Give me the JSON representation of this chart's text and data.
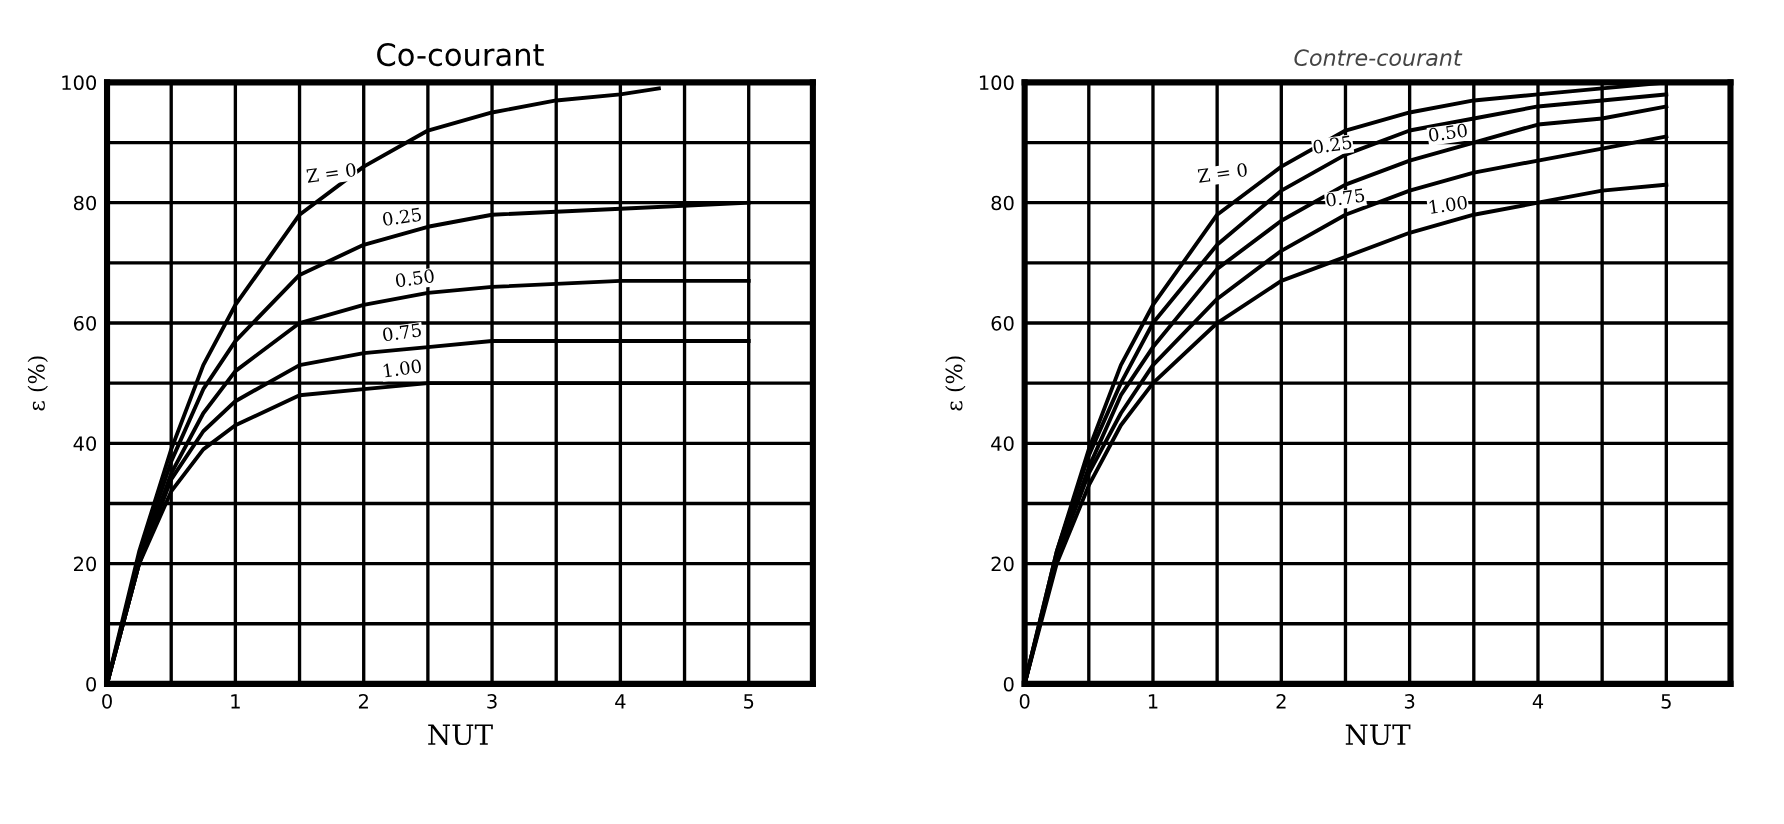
{
  "chart_data": [
    {
      "type": "line",
      "title": "Co-courant",
      "xlabel": "NUT",
      "ylabel": "ε (%)",
      "xlim": [
        0,
        5.5
      ],
      "ylim": [
        0,
        100
      ],
      "xticks": [
        0,
        {
          "value": 0.5,
          "label": null
        },
        1,
        {
          "value": 1.5,
          "label": null
        },
        2,
        {
          "value": 2.5,
          "label": null
        },
        3,
        {
          "value": 3.5,
          "label": null
        },
        4,
        {
          "value": 4.5,
          "label": null
        },
        5
      ],
      "yticks": [
        0,
        {
          "value": 10,
          "label": null
        },
        20,
        {
          "value": 30,
          "label": null
        },
        40,
        {
          "value": 50,
          "label": null
        },
        60,
        {
          "value": 70,
          "label": null
        },
        80,
        {
          "value": 90,
          "label": null
        },
        100
      ],
      "grid": true,
      "legend": false,
      "marker": "none",
      "line_style": "solid",
      "series": [
        {
          "name": "Z = 0",
          "color": "#000000",
          "x": [
            0,
            0.25,
            0.5,
            0.75,
            1,
            1.5,
            2,
            2.5,
            3,
            3.5,
            4,
            4.3
          ],
          "values": [
            0,
            22,
            39,
            53,
            63,
            78,
            86,
            92,
            95,
            97,
            98,
            99
          ]
        },
        {
          "name": "0.25",
          "color": "#000000",
          "x": [
            0,
            0.25,
            0.5,
            0.75,
            1,
            1.5,
            2,
            2.5,
            3,
            4,
            5
          ],
          "values": [
            0,
            21,
            37,
            49,
            57,
            68,
            73,
            76,
            78,
            79,
            80
          ]
        },
        {
          "name": "0.50",
          "color": "#000000",
          "x": [
            0,
            0.25,
            0.5,
            0.75,
            1,
            1.5,
            2,
            2.5,
            3,
            4,
            5
          ],
          "values": [
            0,
            20,
            35,
            45,
            52,
            60,
            63,
            65,
            66,
            67,
            67
          ]
        },
        {
          "name": "0.75",
          "color": "#000000",
          "x": [
            0,
            0.25,
            0.5,
            0.75,
            1,
            1.5,
            2,
            2.5,
            3,
            4,
            5
          ],
          "values": [
            0,
            20,
            34,
            42,
            47,
            53,
            55,
            56,
            57,
            57,
            57
          ]
        },
        {
          "name": "1.00",
          "color": "#000000",
          "x": [
            0,
            0.25,
            0.5,
            0.75,
            1,
            1.5,
            2,
            2.5,
            3,
            4,
            5
          ],
          "values": [
            0,
            20,
            32,
            39,
            43,
            48,
            49,
            50,
            50,
            50,
            50
          ]
        }
      ]
    },
    {
      "type": "line",
      "title": "Contre-courant",
      "xlabel": "NUT",
      "ylabel": "ε (%)",
      "xlim": [
        0,
        5.5
      ],
      "ylim": [
        0,
        100
      ],
      "xticks": [
        0,
        {
          "value": 0.5,
          "label": null
        },
        1,
        {
          "value": 1.5,
          "label": null
        },
        2,
        {
          "value": 2.5,
          "label": null
        },
        3,
        {
          "value": 3.5,
          "label": null
        },
        4,
        {
          "value": 4.5,
          "label": null
        },
        5
      ],
      "yticks": [
        0,
        {
          "value": 10,
          "label": null
        },
        20,
        {
          "value": 30,
          "label": null
        },
        40,
        {
          "value": 50,
          "label": null
        },
        60,
        {
          "value": 70,
          "label": null
        },
        80,
        {
          "value": 90,
          "label": null
        },
        100
      ],
      "grid": true,
      "legend": false,
      "marker": "none",
      "line_style": "solid",
      "series": [
        {
          "name": "Z = 0",
          "color": "#000000",
          "x": [
            0,
            0.25,
            0.5,
            0.75,
            1,
            1.5,
            2,
            2.5,
            3,
            3.5,
            4,
            4.5,
            5
          ],
          "values": [
            0,
            22,
            39,
            53,
            63,
            78,
            86,
            92,
            95,
            97,
            98,
            99,
            100
          ]
        },
        {
          "name": "0.25",
          "color": "#000000",
          "x": [
            0,
            0.25,
            0.5,
            0.75,
            1,
            1.5,
            2,
            2.5,
            3,
            3.5,
            4,
            4.5,
            5
          ],
          "values": [
            0,
            22,
            38,
            50,
            60,
            73,
            82,
            88,
            92,
            94,
            96,
            97,
            98
          ]
        },
        {
          "name": "0.50",
          "color": "#000000",
          "x": [
            0,
            0.25,
            0.5,
            0.75,
            1,
            1.5,
            2,
            2.5,
            3,
            3.5,
            4,
            4.5,
            5
          ],
          "values": [
            0,
            21,
            36,
            48,
            56,
            69,
            77,
            83,
            87,
            90,
            93,
            94,
            96
          ]
        },
        {
          "name": "0.75",
          "color": "#000000",
          "x": [
            0,
            0.25,
            0.5,
            0.75,
            1,
            1.5,
            2,
            2.5,
            3,
            3.5,
            4,
            4.5,
            5
          ],
          "values": [
            0,
            21,
            35,
            45,
            53,
            64,
            72,
            78,
            82,
            85,
            87,
            89,
            91
          ]
        },
        {
          "name": "1.00",
          "color": "#000000",
          "x": [
            0,
            0.25,
            0.5,
            0.75,
            1,
            1.5,
            2,
            2.5,
            3,
            3.5,
            4,
            4.5,
            5
          ],
          "values": [
            0,
            20,
            33,
            43,
            50,
            60,
            67,
            71,
            75,
            78,
            80,
            82,
            83
          ]
        }
      ]
    }
  ]
}
